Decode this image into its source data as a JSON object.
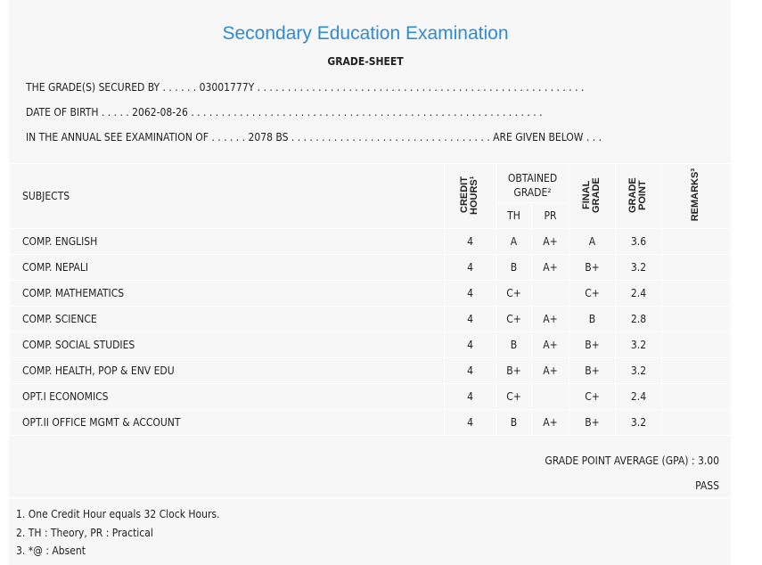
{
  "header": {
    "title": "Secondary Education Examination",
    "subtitle": "GRADE-SHEET"
  },
  "info": {
    "secured_by": "THE GRADE(S) SECURED BY . . . . . . 03001777Y . . . . . . . . . . . . . . . . . . . . . . . . . . . . . . . . . . . . . . . . . . . . . . . . . . . . . .",
    "dob": "DATE OF BIRTH . . . . . 2062-08-26 . . . . . . . . . . . . . . . . . . . . . . . . . . . . . . . . . . . . . . . . . . . . . . . . . . . . . . . . . .",
    "exam": "IN THE ANNUAL SEE EXAMINATION OF . . . . . . 2078 BS . . . . . . . . . . . . . . . . . . . . . . . . . . . . . . . . . ARE GIVEN BELOW . . ."
  },
  "table": {
    "headers": {
      "subjects": "SUBJECTS",
      "credit": "CREDIT HOURS¹",
      "obtained": "OBTAINED GRADE²",
      "th": "TH",
      "pr": "PR",
      "final": "FINAL GRADE",
      "gp": "GRADE POINT",
      "remarks": "REMARKS³"
    },
    "rows": [
      {
        "subject": "COMP. ENGLISH",
        "credit": "4",
        "th": "A",
        "pr": "A+",
        "final": "A",
        "gp": "3.6"
      },
      {
        "subject": "COMP. NEPALI",
        "credit": "4",
        "th": "B",
        "pr": "A+",
        "final": "B+",
        "gp": "3.2"
      },
      {
        "subject": "COMP. MATHEMATICS",
        "credit": "4",
        "th": "C+",
        "pr": "",
        "final": "C+",
        "gp": "2.4"
      },
      {
        "subject": "COMP. SCIENCE",
        "credit": "4",
        "th": "C+",
        "pr": "A+",
        "final": "B",
        "gp": "2.8"
      },
      {
        "subject": "COMP. SOCIAL STUDIES",
        "credit": "4",
        "th": "B",
        "pr": "A+",
        "final": "B+",
        "gp": "3.2"
      },
      {
        "subject": "COMP. HEALTH, POP & ENV EDU",
        "credit": "4",
        "th": "B+",
        "pr": "A+",
        "final": "B+",
        "gp": "3.2"
      },
      {
        "subject": "OPT.I ECONOMICS",
        "credit": "4",
        "th": "C+",
        "pr": "",
        "final": "C+",
        "gp": "2.4"
      },
      {
        "subject": "OPT.II OFFICE MGMT & ACCOUNT",
        "credit": "4",
        "th": "B",
        "pr": "A+",
        "final": "B+",
        "gp": "3.2"
      }
    ]
  },
  "summary": {
    "gpa": "GRADE POINT AVERAGE (GPA) : 3.00",
    "result": "PASS"
  },
  "notes": [
    "1. One Credit Hour equals 32 Clock Hours.",
    "2. TH : Theory, PR : Practical",
    "3. *@ : Absent"
  ]
}
